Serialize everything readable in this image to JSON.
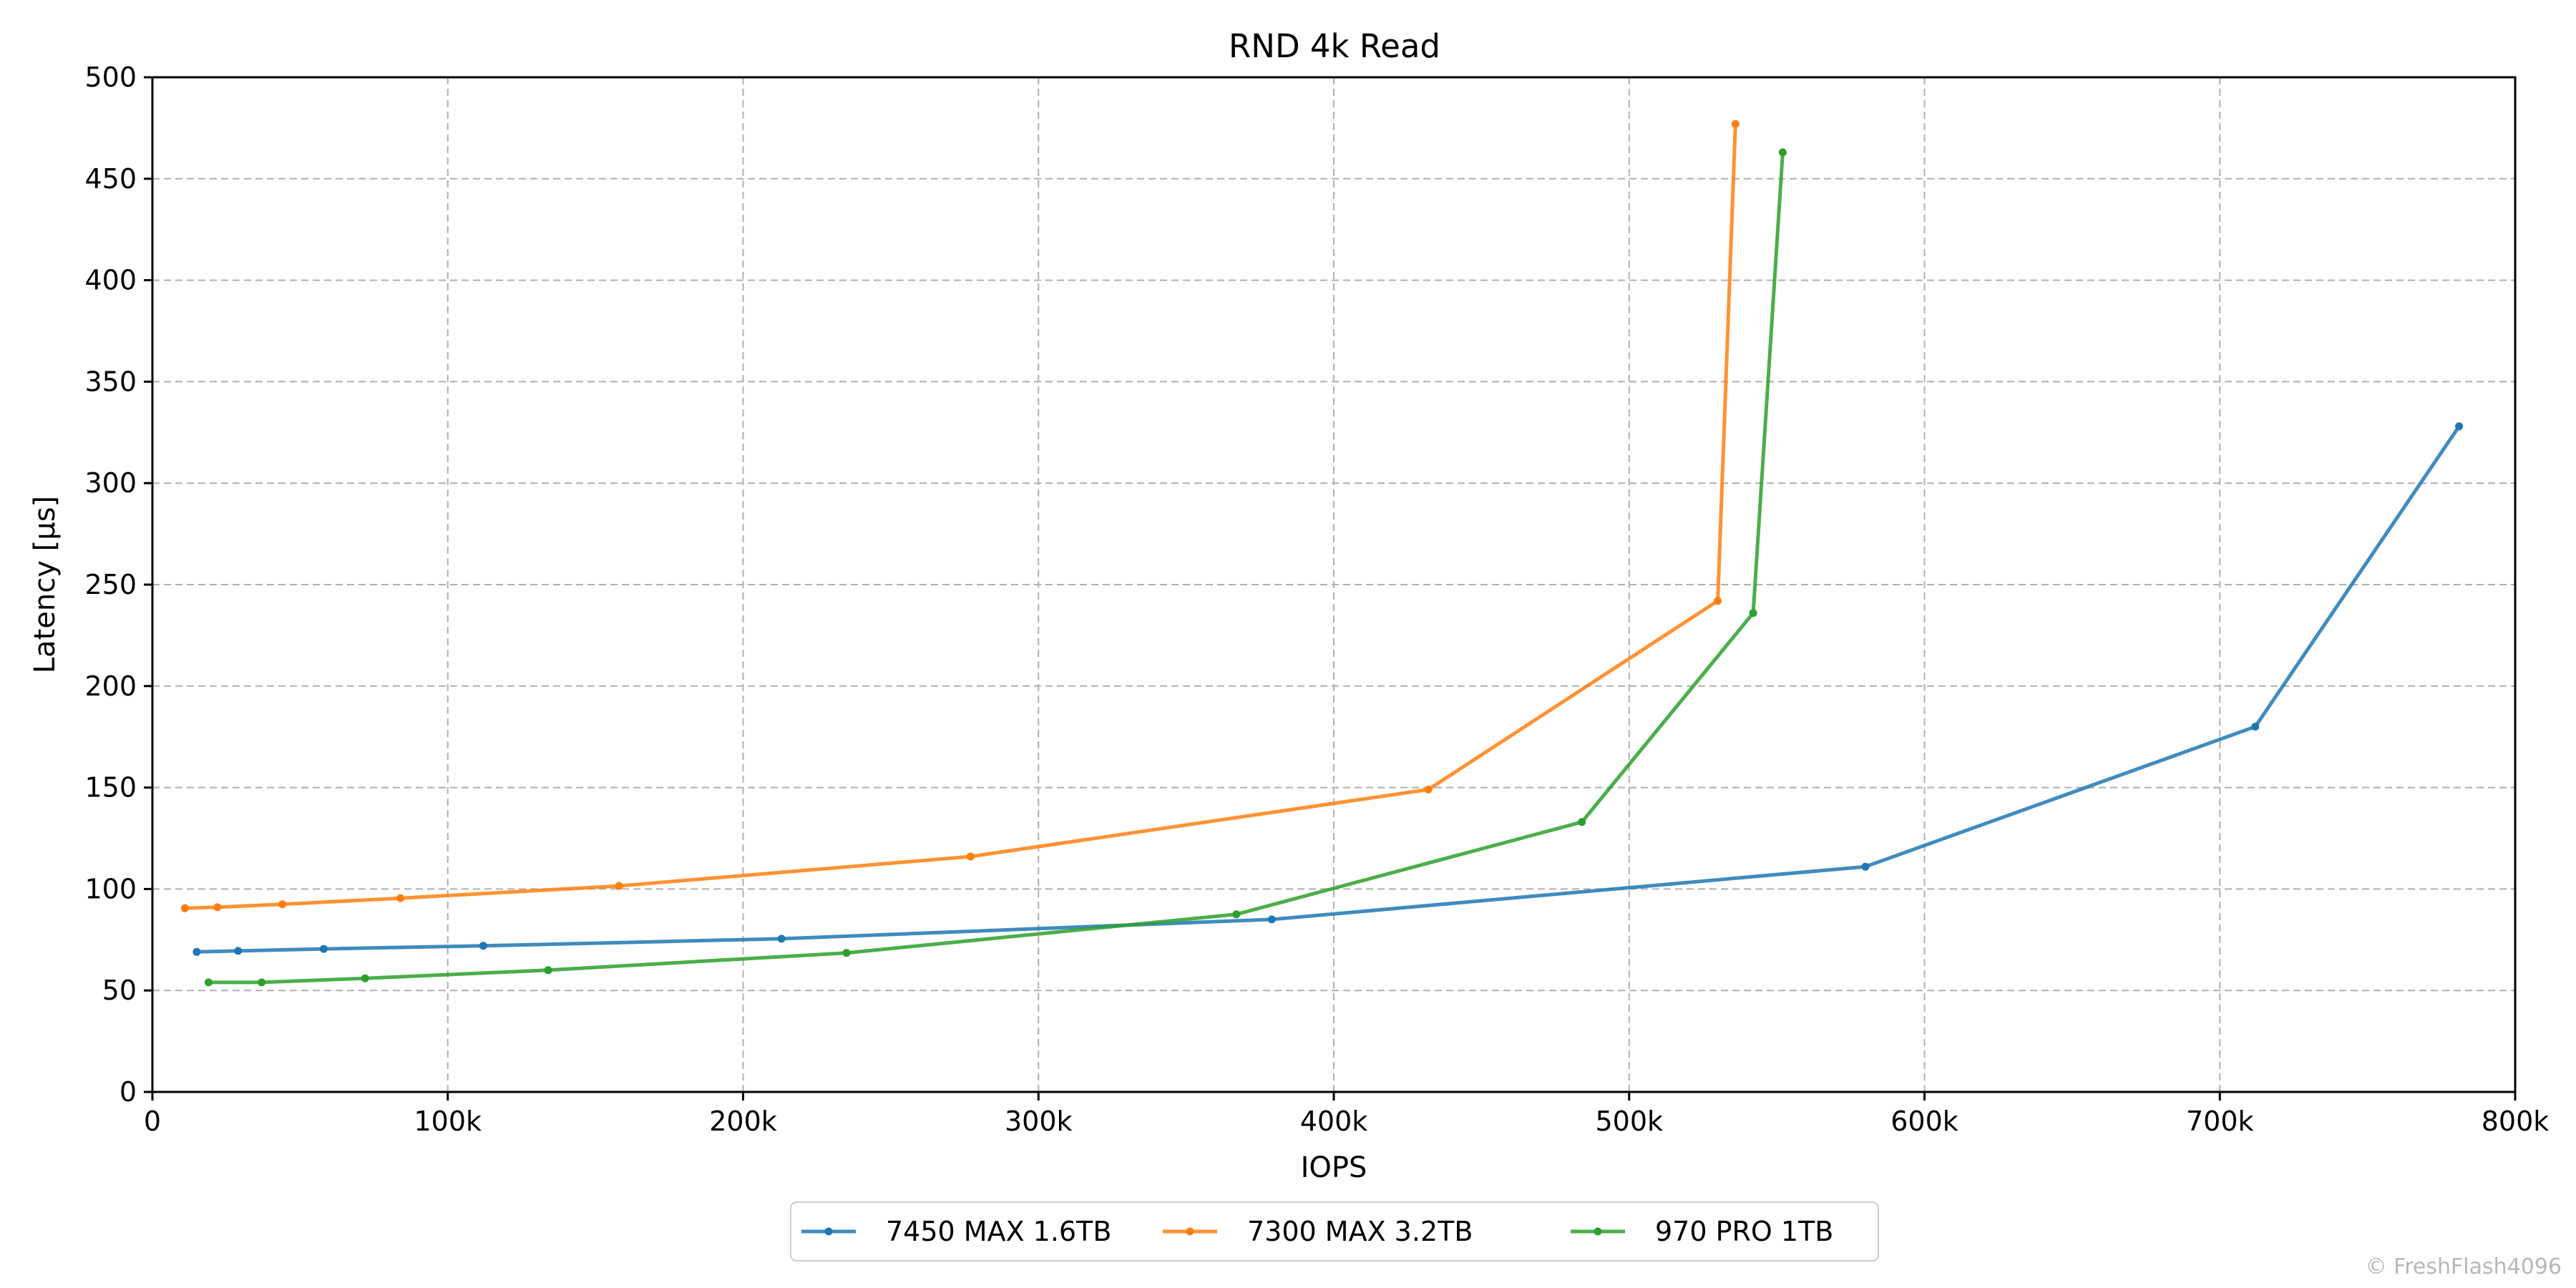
{
  "chart_data": {
    "type": "line",
    "title": "RND 4k Read",
    "xlabel": "IOPS",
    "ylabel": "Latency [µs]",
    "xlim": [
      0,
      800000
    ],
    "ylim": [
      0,
      500
    ],
    "xticks": [
      {
        "value": 0,
        "label": "0"
      },
      {
        "value": 100000,
        "label": "100k"
      },
      {
        "value": 200000,
        "label": "200k"
      },
      {
        "value": 300000,
        "label": "300k"
      },
      {
        "value": 400000,
        "label": "400k"
      },
      {
        "value": 500000,
        "label": "500k"
      },
      {
        "value": 600000,
        "label": "600k"
      },
      {
        "value": 700000,
        "label": "700k"
      },
      {
        "value": 800000,
        "label": "800k"
      }
    ],
    "yticks": [
      {
        "value": 0,
        "label": "0"
      },
      {
        "value": 50,
        "label": "50"
      },
      {
        "value": 100,
        "label": "100"
      },
      {
        "value": 150,
        "label": "150"
      },
      {
        "value": 200,
        "label": "200"
      },
      {
        "value": 250,
        "label": "250"
      },
      {
        "value": 300,
        "label": "300"
      },
      {
        "value": 350,
        "label": "350"
      },
      {
        "value": 400,
        "label": "400"
      },
      {
        "value": 450,
        "label": "450"
      },
      {
        "value": 500,
        "label": "500"
      }
    ],
    "grid": true,
    "legend_position": "bottom-center",
    "series": [
      {
        "name": "7450 MAX 1.6TB",
        "color": "#1f77b4",
        "points": [
          [
            15000,
            69
          ],
          [
            29000,
            69.5
          ],
          [
            58000,
            70.5
          ],
          [
            112000,
            72
          ],
          [
            213000,
            75.5
          ],
          [
            379000,
            85
          ],
          [
            580000,
            111
          ],
          [
            712000,
            180
          ],
          [
            781000,
            328
          ]
        ]
      },
      {
        "name": "7300 MAX 3.2TB",
        "color": "#ff7f0e",
        "points": [
          [
            11000,
            90.5
          ],
          [
            22000,
            91
          ],
          [
            44000,
            92.5
          ],
          [
            84000,
            95.5
          ],
          [
            158000,
            101.5
          ],
          [
            277000,
            116
          ],
          [
            432000,
            149
          ],
          [
            530000,
            242
          ],
          [
            536000,
            477
          ]
        ]
      },
      {
        "name": "970 PRO 1TB",
        "color": "#2ca02c",
        "points": [
          [
            19000,
            54
          ],
          [
            37000,
            54
          ],
          [
            72000,
            56
          ],
          [
            134000,
            60
          ],
          [
            235000,
            68.5
          ],
          [
            367000,
            87.5
          ],
          [
            484000,
            133
          ],
          [
            542000,
            236
          ],
          [
            552000,
            463
          ]
        ]
      }
    ]
  },
  "watermark": "© FreshFlash4096"
}
